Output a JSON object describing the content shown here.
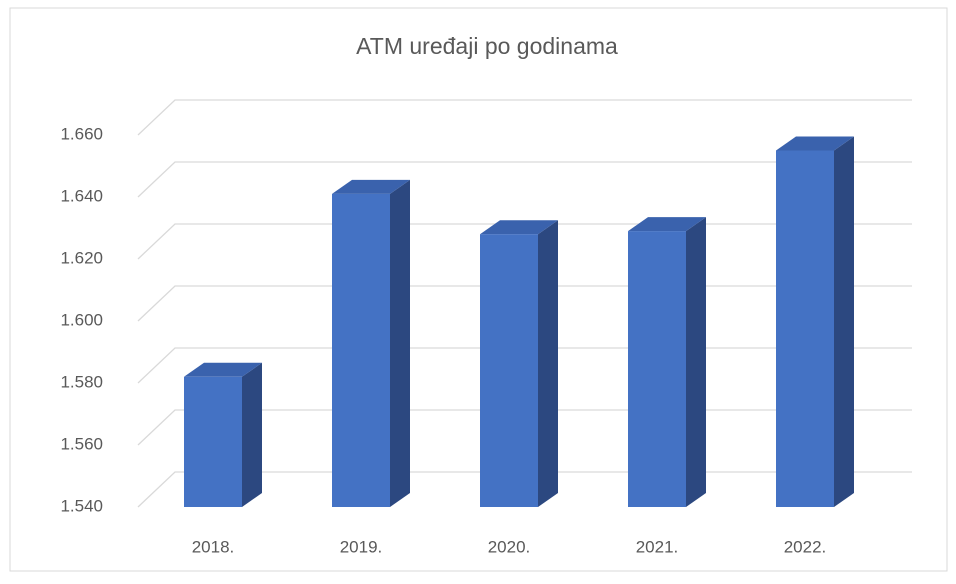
{
  "chart_data": {
    "type": "bar3d",
    "title": "ATM uređaji po godinama",
    "categories": [
      "2018.",
      "2019.",
      "2020.",
      "2021.",
      "2022."
    ],
    "values": [
      1582,
      1641,
      1628,
      1629,
      1655
    ],
    "color": "#4472c4",
    "ylim": [
      1540,
      1660
    ],
    "yticks": [
      {
        "value": 1540,
        "label": "1.540"
      },
      {
        "value": 1560,
        "label": "1.560"
      },
      {
        "value": 1580,
        "label": "1.580"
      },
      {
        "value": 1600,
        "label": "1.600"
      },
      {
        "value": 1620,
        "label": "1.620"
      },
      {
        "value": 1640,
        "label": "1.640"
      },
      {
        "value": 1660,
        "label": "1.660"
      }
    ],
    "grid": true
  }
}
